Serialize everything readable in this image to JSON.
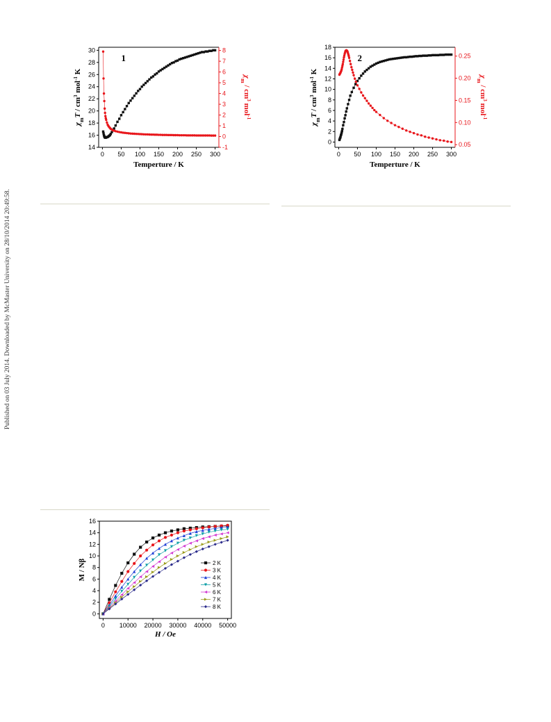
{
  "page": {
    "side_note": "Published on 03 July 2014. Downloaded by McMaster University on 28/10/2014 20:49:58."
  },
  "colors": {
    "black_series": "#111111",
    "red_series": "#e8161b",
    "rule": "#d8d8c8"
  },
  "chart_data": [
    {
      "id": "chart1",
      "type": "scatter",
      "panel_label": "1",
      "xlabel": "Temperture / K",
      "ylabel": "χmT / cm³ mol⁻¹ K",
      "y2label": "χm / cm³ mol⁻¹",
      "xlim": [
        -10,
        310
      ],
      "ylim": [
        14,
        30.5
      ],
      "y2lim": [
        -1,
        8.3
      ],
      "xticks": [
        0,
        50,
        100,
        150,
        200,
        250,
        300
      ],
      "yticks": [
        14,
        16,
        18,
        20,
        22,
        24,
        26,
        28,
        30
      ],
      "y2ticks": [
        -1,
        0,
        1,
        2,
        3,
        4,
        5,
        6,
        7,
        8
      ],
      "series": [
        {
          "axis": "left",
          "color": "#111111",
          "marker": "square",
          "x": [
            2,
            3,
            4,
            5,
            6,
            7,
            8,
            10,
            12,
            14,
            16,
            18,
            20,
            22,
            25,
            28,
            31,
            35,
            40,
            45,
            50,
            55,
            60,
            65,
            70,
            75,
            80,
            85,
            90,
            95,
            100,
            105,
            110,
            115,
            120,
            125,
            130,
            135,
            140,
            145,
            150,
            155,
            160,
            165,
            170,
            175,
            180,
            185,
            190,
            195,
            200,
            205,
            210,
            215,
            220,
            225,
            230,
            235,
            240,
            245,
            250,
            255,
            260,
            265,
            270,
            275,
            280,
            285,
            290,
            295,
            300
          ],
          "y": [
            16.6,
            16.3,
            16.0,
            15.8,
            15.7,
            15.6,
            15.6,
            15.6,
            15.7,
            15.7,
            15.8,
            15.9,
            16.0,
            16.2,
            16.5,
            16.8,
            17.1,
            17.6,
            18.2,
            18.7,
            19.3,
            19.8,
            20.3,
            20.8,
            21.3,
            21.7,
            22.1,
            22.5,
            22.9,
            23.3,
            23.6,
            24.0,
            24.3,
            24.6,
            24.9,
            25.2,
            25.5,
            25.7,
            26.0,
            26.2,
            26.5,
            26.7,
            26.9,
            27.1,
            27.3,
            27.5,
            27.7,
            27.9,
            28.0,
            28.2,
            28.3,
            28.5,
            28.6,
            28.7,
            28.8,
            28.9,
            29.0,
            29.1,
            29.2,
            29.3,
            29.4,
            29.5,
            29.6,
            29.7,
            29.7,
            29.8,
            29.8,
            29.9,
            29.9,
            30.0,
            30.0
          ]
        },
        {
          "axis": "right",
          "color": "#e8161b",
          "marker": "circle",
          "x": [
            2,
            3,
            4,
            5,
            6,
            7,
            8,
            9,
            10,
            12,
            14,
            16,
            18,
            20,
            22,
            25,
            28,
            31,
            35,
            40,
            45,
            50,
            55,
            60,
            65,
            70,
            75,
            80,
            85,
            90,
            95,
            100,
            105,
            110,
            115,
            120,
            125,
            130,
            135,
            140,
            145,
            150,
            155,
            160,
            165,
            170,
            175,
            180,
            185,
            190,
            195,
            200,
            205,
            210,
            215,
            220,
            225,
            230,
            235,
            240,
            245,
            250,
            255,
            260,
            265,
            270,
            275,
            280,
            285,
            290,
            295,
            300
          ],
          "y": [
            7.9,
            5.4,
            4.0,
            3.3,
            2.6,
            2.2,
            1.9,
            1.7,
            1.55,
            1.3,
            1.1,
            0.98,
            0.88,
            0.8,
            0.72,
            0.66,
            0.58,
            0.55,
            0.5,
            0.46,
            0.42,
            0.39,
            0.36,
            0.34,
            0.32,
            0.3,
            0.28,
            0.27,
            0.26,
            0.25,
            0.24,
            0.23,
            0.22,
            0.21,
            0.2,
            0.2,
            0.19,
            0.18,
            0.18,
            0.17,
            0.17,
            0.16,
            0.16,
            0.15,
            0.15,
            0.15,
            0.14,
            0.14,
            0.14,
            0.13,
            0.13,
            0.13,
            0.12,
            0.12,
            0.12,
            0.12,
            0.11,
            0.11,
            0.11,
            0.11,
            0.11,
            0.1,
            0.1,
            0.1,
            0.1,
            0.1,
            0.1,
            0.1,
            0.1,
            0.09,
            0.09,
            0.09
          ]
        }
      ]
    },
    {
      "id": "chart2",
      "type": "scatter",
      "panel_label": "2",
      "xlabel": "Temperture / K",
      "ylabel": "χmT / cm³ mol⁻¹ K",
      "y2label": "χm / cm³ mol⁻¹",
      "xlim": [
        -10,
        310
      ],
      "ylim": [
        -1,
        18
      ],
      "y2lim": [
        0.044,
        0.27
      ],
      "xticks": [
        0,
        50,
        100,
        150,
        200,
        250,
        300
      ],
      "yticks": [
        0,
        2,
        4,
        6,
        8,
        10,
        12,
        14,
        16,
        18
      ],
      "y2ticks": [
        0.05,
        0.1,
        0.15,
        0.2,
        0.25
      ],
      "y2ticklabels": [
        "0.05",
        "0.10",
        "0.15",
        "0.20",
        "0.25"
      ],
      "series": [
        {
          "axis": "left",
          "color": "#111111",
          "marker": "square",
          "x": [
            2,
            3,
            4,
            5,
            6,
            7,
            8,
            9,
            10,
            12,
            14,
            16,
            18,
            20,
            22,
            25,
            28,
            31,
            35,
            40,
            45,
            50,
            55,
            60,
            65,
            70,
            75,
            80,
            85,
            90,
            95,
            100,
            105,
            110,
            115,
            120,
            125,
            130,
            135,
            140,
            145,
            150,
            155,
            160,
            165,
            170,
            175,
            180,
            185,
            190,
            195,
            200,
            205,
            210,
            215,
            220,
            225,
            230,
            235,
            240,
            245,
            250,
            255,
            260,
            265,
            270,
            275,
            280,
            285,
            290,
            295,
            300
          ],
          "y": [
            0.4,
            0.6,
            0.8,
            1.0,
            1.3,
            1.5,
            1.8,
            2.1,
            2.5,
            3.2,
            3.8,
            4.5,
            5.1,
            5.8,
            6.4,
            7.2,
            8.0,
            8.8,
            9.5,
            10.3,
            11.0,
            11.6,
            12.1,
            12.6,
            13.0,
            13.4,
            13.7,
            14.0,
            14.3,
            14.5,
            14.7,
            14.9,
            15.05,
            15.2,
            15.3,
            15.4,
            15.5,
            15.6,
            15.7,
            15.75,
            15.8,
            15.85,
            15.9,
            15.95,
            16.0,
            16.05,
            16.1,
            16.1,
            16.15,
            16.2,
            16.2,
            16.25,
            16.3,
            16.3,
            16.35,
            16.35,
            16.4,
            16.4,
            16.4,
            16.45,
            16.45,
            16.5,
            16.5,
            16.5,
            16.5,
            16.55,
            16.55,
            16.55,
            16.6,
            16.6,
            16.6,
            16.6
          ]
        },
        {
          "axis": "right",
          "color": "#e8161b",
          "marker": "circle",
          "x": [
            2,
            3,
            4,
            5,
            6,
            7,
            8,
            9,
            10,
            11,
            12,
            13,
            14,
            15,
            16,
            17,
            18,
            19,
            20,
            21,
            22,
            23,
            24,
            25,
            26,
            27,
            28,
            30,
            32,
            34,
            36,
            38,
            40,
            43,
            46,
            50,
            55,
            60,
            65,
            70,
            75,
            80,
            85,
            90,
            95,
            100,
            110,
            120,
            130,
            140,
            150,
            160,
            170,
            180,
            190,
            200,
            210,
            220,
            230,
            240,
            250,
            260,
            270,
            280,
            290,
            300
          ],
          "y": [
            0.208,
            0.21,
            0.211,
            0.213,
            0.215,
            0.217,
            0.22,
            0.224,
            0.228,
            0.232,
            0.237,
            0.242,
            0.247,
            0.251,
            0.255,
            0.258,
            0.261,
            0.262,
            0.263,
            0.263,
            0.262,
            0.261,
            0.259,
            0.256,
            0.253,
            0.25,
            0.246,
            0.239,
            0.232,
            0.225,
            0.219,
            0.213,
            0.207,
            0.199,
            0.192,
            0.184,
            0.176,
            0.168,
            0.161,
            0.155,
            0.149,
            0.143,
            0.138,
            0.133,
            0.128,
            0.124,
            0.117,
            0.11,
            0.104,
            0.099,
            0.094,
            0.09,
            0.086,
            0.082,
            0.079,
            0.076,
            0.073,
            0.071,
            0.068,
            0.066,
            0.064,
            0.062,
            0.06,
            0.059,
            0.057,
            0.056
          ]
        }
      ]
    },
    {
      "id": "chart3",
      "type": "line",
      "xlabel": "H / Oe",
      "ylabel": "M / Nβ",
      "xlim": [
        -1500,
        51500
      ],
      "ylim": [
        -0.8,
        16
      ],
      "xticks": [
        0,
        10000,
        20000,
        30000,
        40000,
        50000
      ],
      "yticks": [
        0,
        2,
        4,
        6,
        8,
        10,
        12,
        14,
        16
      ],
      "x": [
        0,
        2500,
        5000,
        7500,
        10000,
        12500,
        15000,
        17500,
        20000,
        22500,
        25000,
        27500,
        30000,
        32500,
        35000,
        37500,
        40000,
        42500,
        45000,
        47500,
        50000
      ],
      "series": [
        {
          "name": "2 K",
          "color": "#111111",
          "marker": "square",
          "values": [
            0,
            2.5,
            4.9,
            7.0,
            8.8,
            10.3,
            11.5,
            12.4,
            13.1,
            13.6,
            14.0,
            14.3,
            14.5,
            14.7,
            14.8,
            14.9,
            15.0,
            15.05,
            15.1,
            15.15,
            15.2
          ]
        },
        {
          "name": "3 K",
          "color": "#e8161b",
          "marker": "circle",
          "values": [
            0,
            1.9,
            3.8,
            5.6,
            7.3,
            8.7,
            10.0,
            11.0,
            11.9,
            12.6,
            13.2,
            13.6,
            14.0,
            14.3,
            14.5,
            14.7,
            14.85,
            15.0,
            15.1,
            15.2,
            15.3
          ]
        },
        {
          "name": "4 K",
          "color": "#1f3fd6",
          "marker": "triangle-up",
          "values": [
            0,
            1.5,
            3.1,
            4.6,
            6.0,
            7.3,
            8.5,
            9.6,
            10.5,
            11.3,
            12.0,
            12.6,
            13.1,
            13.5,
            13.9,
            14.2,
            14.4,
            14.6,
            14.75,
            14.9,
            15.0
          ]
        },
        {
          "name": "5 K",
          "color": "#10a0a8",
          "marker": "triangle-down",
          "values": [
            0,
            1.3,
            2.6,
            3.9,
            5.1,
            6.3,
            7.4,
            8.4,
            9.3,
            10.2,
            10.9,
            11.6,
            12.2,
            12.7,
            13.1,
            13.5,
            13.8,
            14.1,
            14.3,
            14.5,
            14.6
          ]
        },
        {
          "name": "6 K",
          "color": "#d23ad2",
          "marker": "triangle-left",
          "values": [
            0,
            1.1,
            2.2,
            3.3,
            4.4,
            5.4,
            6.4,
            7.3,
            8.2,
            9.0,
            9.8,
            10.5,
            11.1,
            11.7,
            12.2,
            12.6,
            13.0,
            13.3,
            13.6,
            13.8,
            14.0
          ]
        },
        {
          "name": "7 K",
          "color": "#9a9a1a",
          "marker": "triangle-right",
          "values": [
            0,
            0.95,
            1.9,
            2.9,
            3.8,
            4.7,
            5.6,
            6.4,
            7.2,
            8.0,
            8.7,
            9.4,
            10.0,
            10.6,
            11.1,
            11.6,
            12.0,
            12.4,
            12.7,
            13.0,
            13.3
          ]
        },
        {
          "name": "8 K",
          "color": "#2a2a8a",
          "marker": "diamond",
          "values": [
            0,
            0.85,
            1.7,
            2.55,
            3.35,
            4.15,
            4.95,
            5.7,
            6.45,
            7.15,
            7.85,
            8.5,
            9.1,
            9.7,
            10.25,
            10.75,
            11.2,
            11.6,
            12.0,
            12.35,
            12.7
          ]
        }
      ]
    }
  ]
}
